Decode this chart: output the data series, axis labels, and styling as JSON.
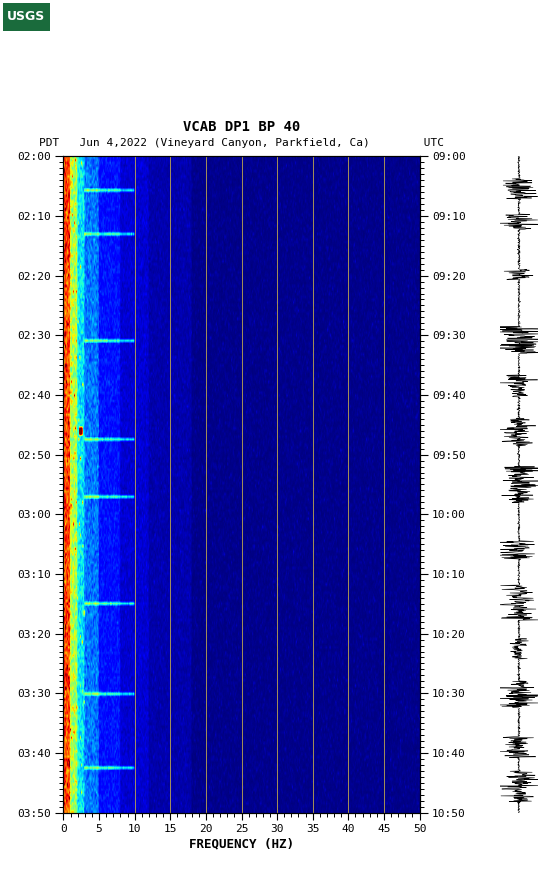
{
  "title_line1": "VCAB DP1 BP 40",
  "title_line2_pdt": "PDT   Jun 4,2022 (Vineyard Canyon, Parkfield, Ca)        UTC",
  "xlabel": "FREQUENCY (HZ)",
  "freq_min": 0,
  "freq_max": 50,
  "freq_ticks": [
    0,
    5,
    10,
    15,
    20,
    25,
    30,
    35,
    40,
    45,
    50
  ],
  "time_labels_left": [
    "02:00",
    "02:10",
    "02:20",
    "02:30",
    "02:40",
    "02:50",
    "03:00",
    "03:10",
    "03:20",
    "03:30",
    "03:40",
    "03:50"
  ],
  "time_labels_right": [
    "09:00",
    "09:10",
    "09:20",
    "09:30",
    "09:40",
    "09:50",
    "10:00",
    "10:10",
    "10:20",
    "10:30",
    "10:40",
    "10:50"
  ],
  "vertical_lines_freq": [
    10,
    15,
    20,
    25,
    30,
    35,
    40,
    45
  ],
  "vline_color": "#b8a050",
  "background_color": "#ffffff",
  "num_time_steps": 240,
  "num_freq_steps": 600
}
